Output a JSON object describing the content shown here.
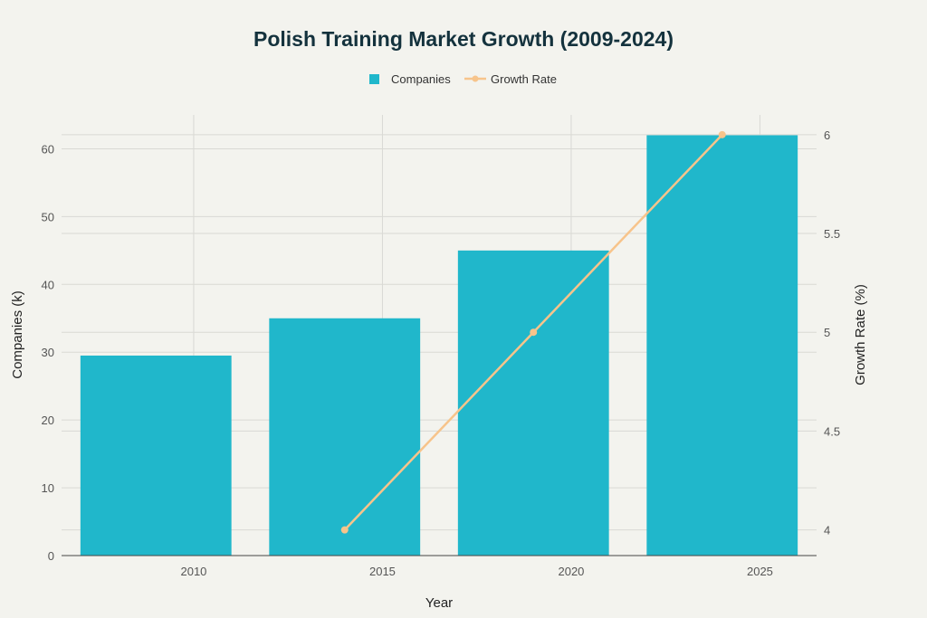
{
  "chart_data": {
    "type": "bar",
    "title": "Polish Training Market Growth (2009-2024)",
    "xlabel": "Year",
    "ylabel": "Companies (k)",
    "y2label": "Growth Rate (%)",
    "xlim": [
      2006.5,
      2026.5
    ],
    "xticks": [
      2010,
      2015,
      2020,
      2025
    ],
    "ylim": [
      0,
      65
    ],
    "yticks": [
      0,
      10,
      20,
      30,
      40,
      50,
      60
    ],
    "y2lim": [
      3.87,
      6.1
    ],
    "y2ticks": [
      4,
      4.5,
      5,
      5.5,
      6
    ],
    "grid": true,
    "legend_position": "top-center",
    "series": [
      {
        "name": "Companies",
        "kind": "bar",
        "axis": "left",
        "color": "#20b7cb",
        "x": [
          2009,
          2014,
          2019,
          2024
        ],
        "values": [
          29.5,
          35,
          45,
          62
        ]
      },
      {
        "name": "Growth Rate",
        "kind": "line",
        "axis": "right",
        "color": "#f7c48b",
        "x": [
          2014,
          2019,
          2024
        ],
        "values": [
          4,
          5,
          6
        ]
      }
    ]
  }
}
